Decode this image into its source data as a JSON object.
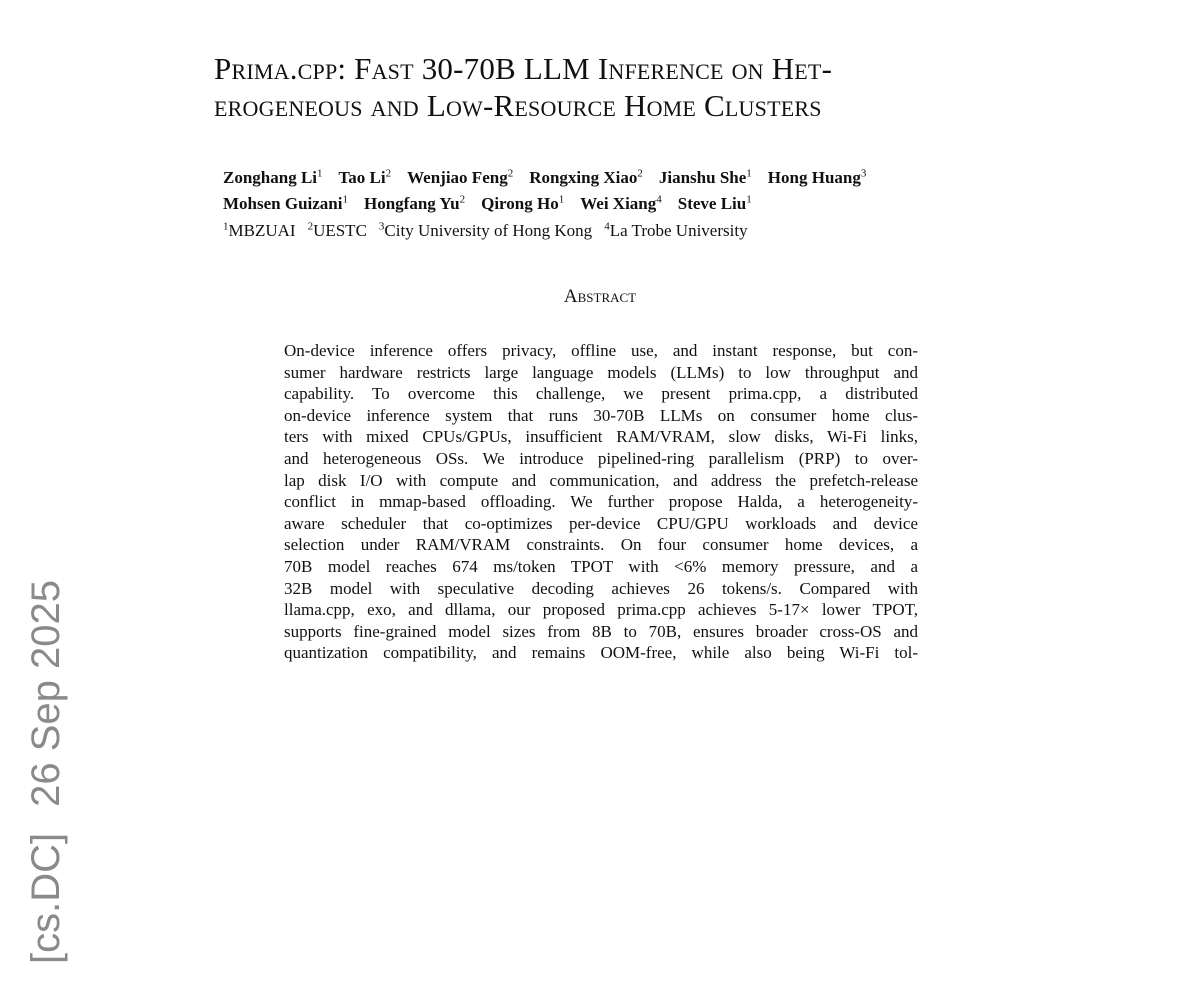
{
  "title_lines": [
    "Prima.cpp: Fast 30-70B LLM Inference on Het-",
    "erogeneous and Low-Resource Home Clusters"
  ],
  "authors": [
    [
      {
        "name": "Zonghang Li",
        "aff": "1"
      },
      {
        "name": "Tao Li",
        "aff": "2"
      },
      {
        "name": "Wenjiao Feng",
        "aff": "2"
      },
      {
        "name": "Rongxing Xiao",
        "aff": "2"
      },
      {
        "name": "Jianshu She",
        "aff": "1"
      },
      {
        "name": "Hong Huang",
        "aff": "3"
      }
    ],
    [
      {
        "name": "Mohsen Guizani",
        "aff": "1"
      },
      {
        "name": "Hongfang Yu",
        "aff": "2"
      },
      {
        "name": "Qirong Ho",
        "aff": "1"
      },
      {
        "name": "Wei Xiang",
        "aff": "4"
      },
      {
        "name": "Steve Liu",
        "aff": "1"
      }
    ]
  ],
  "affiliations": [
    {
      "n": "1",
      "name": "MBZUAI"
    },
    {
      "n": "2",
      "name": "UESTC"
    },
    {
      "n": "3",
      "name": "City University of Hong Kong"
    },
    {
      "n": "4",
      "name": "La Trobe University"
    }
  ],
  "abstract_heading": "Abstract",
  "abstract_lines": [
    "On-device inference offers privacy, offline use, and instant response, but con-",
    "sumer hardware restricts large language models (LLMs) to low throughput and",
    "capability.  To overcome this challenge, we present prima.cpp, a distributed",
    "on-device inference system that runs 30-70B LLMs on consumer home clus-",
    "ters with mixed CPUs/GPUs, insufficient RAM/VRAM, slow disks, Wi-Fi links,",
    "and heterogeneous OSs. We introduce pipelined-ring parallelism (PRP) to over-",
    "lap disk I/O with compute and communication, and address the prefetch-release",
    "conflict in mmap-based offloading. We further propose Halda, a heterogeneity-",
    "aware scheduler that co-optimizes per-device CPU/GPU workloads and device",
    "selection under RAM/VRAM constraints.  On four consumer home devices, a",
    "70B model reaches 674 ms/token TPOT with <6% memory pressure, and a",
    "32B model with speculative decoding achieves 26 tokens/s.  Compared with",
    "llama.cpp, exo, and dllama, our proposed prima.cpp achieves 5-17× lower TPOT,",
    "supports fine-grained model sizes from 8B to 70B, ensures broader cross-OS and",
    "quantization compatibility, and remains OOM-free, while also being Wi-Fi tol-"
  ],
  "side_stamp": {
    "category": "[cs.DC]",
    "date": "26 Sep 2025"
  }
}
